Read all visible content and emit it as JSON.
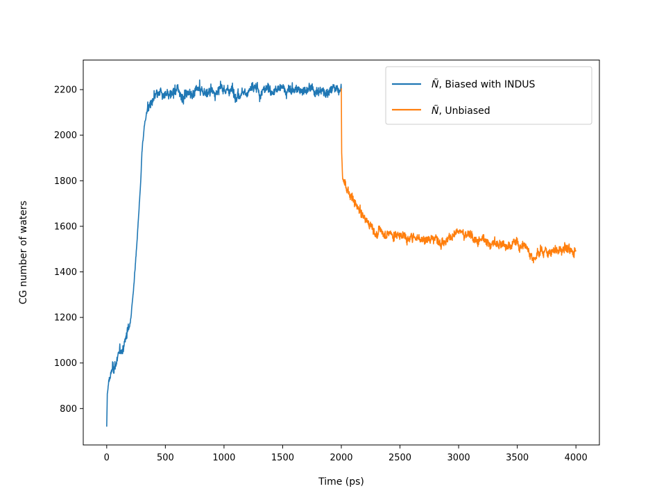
{
  "chart_data": {
    "type": "line",
    "title": "",
    "xlabel": "Time (ps)",
    "ylabel": "CG number of waters",
    "xlim": [
      -200,
      4200
    ],
    "ylim": [
      640,
      2330
    ],
    "xticks": [
      0,
      500,
      1000,
      1500,
      2000,
      2500,
      3000,
      3500,
      4000
    ],
    "yticks": [
      800,
      1000,
      1200,
      1400,
      1600,
      1800,
      2000,
      2200
    ],
    "grid": false,
    "legend_position": "top-right",
    "series": [
      {
        "name": "Ñ, Biased with INDUS",
        "color": "#1f77b4",
        "x": [
          0,
          5,
          20,
          50,
          80,
          100,
          150,
          200,
          230,
          260,
          290,
          300,
          320,
          350,
          400,
          450,
          500,
          600,
          700,
          800,
          900,
          1000,
          1100,
          1200,
          1300,
          1400,
          1500,
          1600,
          1700,
          1800,
          1900,
          2000
        ],
        "y": [
          715,
          860,
          930,
          970,
          1000,
          1020,
          1080,
          1180,
          1330,
          1550,
          1800,
          1920,
          2040,
          2120,
          2155,
          2170,
          2175,
          2180,
          2185,
          2190,
          2192,
          2195,
          2195,
          2200,
          2195,
          2200,
          2200,
          2200,
          2200,
          2200,
          2205,
          2200
        ],
        "noise": 25
      },
      {
        "name": "Ñ, Unbiased",
        "color": "#ff7f0e",
        "x": [
          2000,
          2003,
          2010,
          2030,
          2060,
          2100,
          2150,
          2200,
          2250,
          2300,
          2400,
          2500,
          2600,
          2700,
          2800,
          2900,
          3000,
          3100,
          3200,
          3300,
          3400,
          3500,
          3600,
          3650,
          3700,
          3800,
          3900,
          4000
        ],
        "y": [
          2205,
          1920,
          1830,
          1790,
          1760,
          1720,
          1670,
          1630,
          1600,
          1580,
          1570,
          1560,
          1555,
          1545,
          1550,
          1555,
          1570,
          1565,
          1535,
          1525,
          1520,
          1520,
          1500,
          1470,
          1495,
          1495,
          1500,
          1490
        ],
        "noise": 22
      }
    ]
  },
  "legend": {
    "items": [
      {
        "symbol": "Ñ",
        "text": ", Biased with INDUS",
        "color": "#1f77b4"
      },
      {
        "symbol": "Ñ",
        "text": ", Unbiased",
        "color": "#ff7f0e"
      }
    ]
  }
}
